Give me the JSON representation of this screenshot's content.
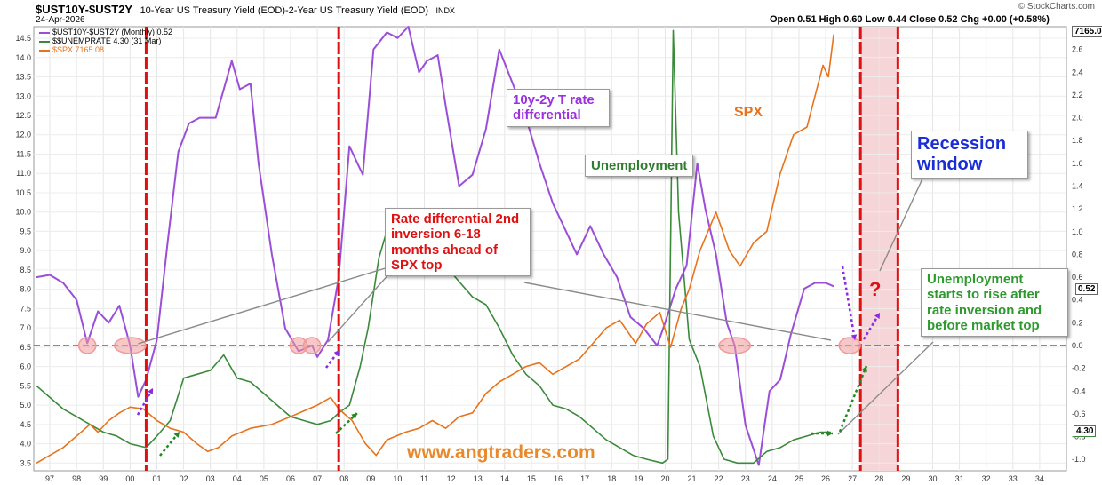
{
  "header": {
    "symbol": "$UST10Y-$UST2Y",
    "description": "10-Year US Treasury Yield (EOD)-2-Year US Treasury Yield (EOD)",
    "exchange": "INDX",
    "date": "24-Apr-2026",
    "watermark": "© StockCharts.com",
    "ohlc": "Open 0.51  High 0.60  Low 0.44  Close 0.52  Chg +0.00 (+0.58%)"
  },
  "legend": [
    {
      "label": "$UST10Y-$UST2Y (Monthly) 0.52",
      "color": "#9b4fd9"
    },
    {
      "label": "$$UNEMPRATE 4.30 (31 Mar)",
      "color": "#3a8a3a"
    },
    {
      "label": "$SPX 7165.08",
      "color": "#e8731c"
    }
  ],
  "price_labels": {
    "spx": "7165.08",
    "spread": "0.52",
    "unemp": "4.30"
  },
  "annotations": {
    "rate_diff": "10y-2y T rate differential",
    "spx": "SPX",
    "unemployment": "Unemployment",
    "recession": "Recession window",
    "inversion_note": "Rate differential 2nd inversion 6-18 months ahead of SPX top",
    "unemp_note": "Unemployment starts to rise after rate inversion and before market top",
    "question": "?",
    "website": "www.angtraders.com"
  },
  "colors": {
    "spread": "#9b4fd9",
    "unemployment": "#3a8a3a",
    "spx": "#e8731c",
    "event_lines": "#e01010",
    "zero_line": "#9b30e0",
    "recession_fill": "#f6d5d8",
    "markers": "#f19a9a"
  },
  "chart_data": {
    "type": "line",
    "x_unit": "year",
    "xlim": [
      1996.4,
      2035.0
    ],
    "x_ticks": [
      "97",
      "98",
      "99",
      "00",
      "01",
      "02",
      "03",
      "04",
      "05",
      "06",
      "07",
      "08",
      "09",
      "10",
      "11",
      "12",
      "13",
      "14",
      "15",
      "16",
      "17",
      "18",
      "19",
      "20",
      "21",
      "22",
      "23",
      "24",
      "25",
      "26",
      "27",
      "28",
      "29",
      "30",
      "31",
      "32",
      "33",
      "34"
    ],
    "left_axis": {
      "label": "",
      "range": [
        3.3,
        14.8
      ],
      "ticks": [
        3.5,
        4.0,
        4.5,
        5.0,
        5.5,
        6.0,
        6.5,
        7.0,
        7.5,
        8.0,
        8.5,
        9.0,
        9.5,
        10.0,
        10.5,
        11.0,
        11.5,
        12.0,
        12.5,
        13.0,
        13.5,
        14.0,
        14.5
      ]
    },
    "right_axis": {
      "label": "",
      "range": [
        -1.1,
        2.8
      ],
      "ticks": [
        -1.0,
        -0.8,
        -0.6,
        -0.4,
        -0.2,
        0.0,
        0.2,
        0.4,
        0.6,
        0.8,
        1.0,
        1.2,
        1.4,
        1.6,
        1.8,
        2.0,
        2.2,
        2.4,
        2.6
      ]
    },
    "event_lines_x": [
      2000.6,
      2007.8,
      2027.3,
      2028.7
    ],
    "recession_window": [
      2027.3,
      2028.7
    ],
    "zero_line_right": 0.0,
    "series": [
      {
        "name": "$UST10Y-$UST2Y (Monthly)",
        "axis": "right",
        "points": [
          [
            1996.5,
            0.6
          ],
          [
            1997.0,
            0.62
          ],
          [
            1997.5,
            0.55
          ],
          [
            1998.0,
            0.4
          ],
          [
            1998.4,
            0.02
          ],
          [
            1998.8,
            0.3
          ],
          [
            1999.2,
            0.2
          ],
          [
            1999.6,
            0.35
          ],
          [
            2000.0,
            0.0
          ],
          [
            2000.3,
            -0.45
          ],
          [
            2000.6,
            -0.3
          ],
          [
            2001.0,
            0.05
          ],
          [
            2001.4,
            0.9
          ],
          [
            2001.8,
            1.7
          ],
          [
            2002.2,
            1.95
          ],
          [
            2002.6,
            2.0
          ],
          [
            2003.2,
            2.0
          ],
          [
            2003.8,
            2.5
          ],
          [
            2004.1,
            2.25
          ],
          [
            2004.5,
            2.3
          ],
          [
            2004.8,
            1.6
          ],
          [
            2005.3,
            0.8
          ],
          [
            2005.8,
            0.15
          ],
          [
            2006.3,
            -0.05
          ],
          [
            2006.8,
            0.0
          ],
          [
            2007.0,
            -0.1
          ],
          [
            2007.4,
            0.05
          ],
          [
            2007.8,
            0.6
          ],
          [
            2008.2,
            1.75
          ],
          [
            2008.7,
            1.5
          ],
          [
            2009.1,
            2.6
          ],
          [
            2009.6,
            2.75
          ],
          [
            2010.0,
            2.7
          ],
          [
            2010.4,
            2.8
          ],
          [
            2010.8,
            2.4
          ],
          [
            2011.1,
            2.5
          ],
          [
            2011.5,
            2.55
          ],
          [
            2011.8,
            2.1
          ],
          [
            2012.3,
            1.4
          ],
          [
            2012.8,
            1.5
          ],
          [
            2013.3,
            1.9
          ],
          [
            2013.8,
            2.6
          ],
          [
            2014.3,
            2.3
          ],
          [
            2014.8,
            2.0
          ],
          [
            2015.3,
            1.6
          ],
          [
            2015.8,
            1.25
          ],
          [
            2016.3,
            1.0
          ],
          [
            2016.7,
            0.8
          ],
          [
            2017.2,
            1.05
          ],
          [
            2017.7,
            0.8
          ],
          [
            2018.2,
            0.6
          ],
          [
            2018.7,
            0.25
          ],
          [
            2019.2,
            0.15
          ],
          [
            2019.7,
            0.0
          ],
          [
            2020.0,
            0.2
          ],
          [
            2020.4,
            0.5
          ],
          [
            2020.8,
            0.7
          ],
          [
            2021.2,
            1.6
          ],
          [
            2021.5,
            1.2
          ],
          [
            2021.9,
            0.8
          ],
          [
            2022.3,
            0.2
          ],
          [
            2022.6,
            0.0
          ],
          [
            2023.0,
            -0.7
          ],
          [
            2023.5,
            -1.05
          ],
          [
            2023.9,
            -0.4
          ],
          [
            2024.3,
            -0.3
          ],
          [
            2024.7,
            0.1
          ],
          [
            2025.2,
            0.5
          ],
          [
            2025.6,
            0.55
          ],
          [
            2026.0,
            0.55
          ],
          [
            2026.3,
            0.52
          ]
        ]
      },
      {
        "name": "$$UNEMPRATE",
        "axis": "left",
        "points": [
          [
            1996.5,
            5.5
          ],
          [
            1997.0,
            5.2
          ],
          [
            1997.5,
            4.9
          ],
          [
            1998.0,
            4.7
          ],
          [
            1998.5,
            4.5
          ],
          [
            1999.0,
            4.3
          ],
          [
            1999.5,
            4.2
          ],
          [
            2000.0,
            4.0
          ],
          [
            2000.6,
            3.9
          ],
          [
            2001.0,
            4.2
          ],
          [
            2001.5,
            4.6
          ],
          [
            2002.0,
            5.7
          ],
          [
            2002.5,
            5.8
          ],
          [
            2003.0,
            5.9
          ],
          [
            2003.5,
            6.3
          ],
          [
            2004.0,
            5.7
          ],
          [
            2004.5,
            5.6
          ],
          [
            2005.0,
            5.3
          ],
          [
            2005.5,
            5.0
          ],
          [
            2006.0,
            4.7
          ],
          [
            2006.5,
            4.6
          ],
          [
            2007.0,
            4.5
          ],
          [
            2007.5,
            4.6
          ],
          [
            2007.8,
            4.8
          ],
          [
            2008.2,
            5.0
          ],
          [
            2008.6,
            6.0
          ],
          [
            2008.9,
            7.0
          ],
          [
            2009.3,
            8.8
          ],
          [
            2009.8,
            10.0
          ],
          [
            2010.3,
            9.7
          ],
          [
            2010.8,
            9.5
          ],
          [
            2011.3,
            9.0
          ],
          [
            2011.8,
            8.6
          ],
          [
            2012.3,
            8.2
          ],
          [
            2012.8,
            7.8
          ],
          [
            2013.3,
            7.6
          ],
          [
            2013.8,
            7.0
          ],
          [
            2014.3,
            6.3
          ],
          [
            2014.8,
            5.8
          ],
          [
            2015.3,
            5.5
          ],
          [
            2015.8,
            5.0
          ],
          [
            2016.3,
            4.9
          ],
          [
            2016.8,
            4.7
          ],
          [
            2017.3,
            4.4
          ],
          [
            2017.8,
            4.1
          ],
          [
            2018.3,
            3.9
          ],
          [
            2018.8,
            3.7
          ],
          [
            2019.3,
            3.6
          ],
          [
            2019.9,
            3.5
          ],
          [
            2020.1,
            3.6
          ],
          [
            2020.3,
            14.7
          ],
          [
            2020.5,
            10.0
          ],
          [
            2020.9,
            6.7
          ],
          [
            2021.3,
            6.0
          ],
          [
            2021.8,
            4.2
          ],
          [
            2022.2,
            3.6
          ],
          [
            2022.7,
            3.5
          ],
          [
            2023.3,
            3.5
          ],
          [
            2023.8,
            3.8
          ],
          [
            2024.3,
            3.9
          ],
          [
            2024.8,
            4.1
          ],
          [
            2025.3,
            4.2
          ],
          [
            2025.8,
            4.3
          ],
          [
            2026.2,
            4.3
          ]
        ]
      },
      {
        "name": "$SPX",
        "axis": "left",
        "points": [
          [
            1996.5,
            3.5
          ],
          [
            1997.0,
            3.7
          ],
          [
            1997.5,
            3.9
          ],
          [
            1998.0,
            4.2
          ],
          [
            1998.5,
            4.5
          ],
          [
            1998.8,
            4.3
          ],
          [
            1999.2,
            4.6
          ],
          [
            1999.6,
            4.8
          ],
          [
            2000.0,
            4.95
          ],
          [
            2000.5,
            4.9
          ],
          [
            2001.0,
            4.6
          ],
          [
            2001.5,
            4.4
          ],
          [
            2002.0,
            4.3
          ],
          [
            2002.5,
            4.0
          ],
          [
            2002.9,
            3.8
          ],
          [
            2003.3,
            3.9
          ],
          [
            2003.8,
            4.2
          ],
          [
            2004.5,
            4.4
          ],
          [
            2005.3,
            4.5
          ],
          [
            2006.0,
            4.7
          ],
          [
            2006.5,
            4.85
          ],
          [
            2007.0,
            5.0
          ],
          [
            2007.5,
            5.2
          ],
          [
            2007.8,
            4.9
          ],
          [
            2008.3,
            4.6
          ],
          [
            2008.8,
            4.0
          ],
          [
            2009.2,
            3.7
          ],
          [
            2009.6,
            4.1
          ],
          [
            2010.3,
            4.3
          ],
          [
            2010.8,
            4.4
          ],
          [
            2011.3,
            4.6
          ],
          [
            2011.8,
            4.4
          ],
          [
            2012.3,
            4.7
          ],
          [
            2012.8,
            4.8
          ],
          [
            2013.3,
            5.3
          ],
          [
            2013.8,
            5.6
          ],
          [
            2014.3,
            5.8
          ],
          [
            2014.8,
            6.0
          ],
          [
            2015.3,
            6.1
          ],
          [
            2015.8,
            5.8
          ],
          [
            2016.3,
            6.0
          ],
          [
            2016.8,
            6.2
          ],
          [
            2017.3,
            6.6
          ],
          [
            2017.8,
            7.0
          ],
          [
            2018.3,
            7.2
          ],
          [
            2018.9,
            6.6
          ],
          [
            2019.3,
            7.1
          ],
          [
            2019.8,
            7.4
          ],
          [
            2020.2,
            6.5
          ],
          [
            2020.6,
            7.5
          ],
          [
            2020.9,
            8.0
          ],
          [
            2021.3,
            9.0
          ],
          [
            2021.9,
            10.0
          ],
          [
            2022.4,
            9.0
          ],
          [
            2022.8,
            8.6
          ],
          [
            2023.3,
            9.2
          ],
          [
            2023.8,
            9.5
          ],
          [
            2024.3,
            11.0
          ],
          [
            2024.8,
            12.0
          ],
          [
            2025.3,
            12.2
          ],
          [
            2025.6,
            13.0
          ],
          [
            2025.9,
            13.8
          ],
          [
            2026.1,
            13.5
          ],
          [
            2026.3,
            14.6
          ]
        ]
      }
    ]
  }
}
